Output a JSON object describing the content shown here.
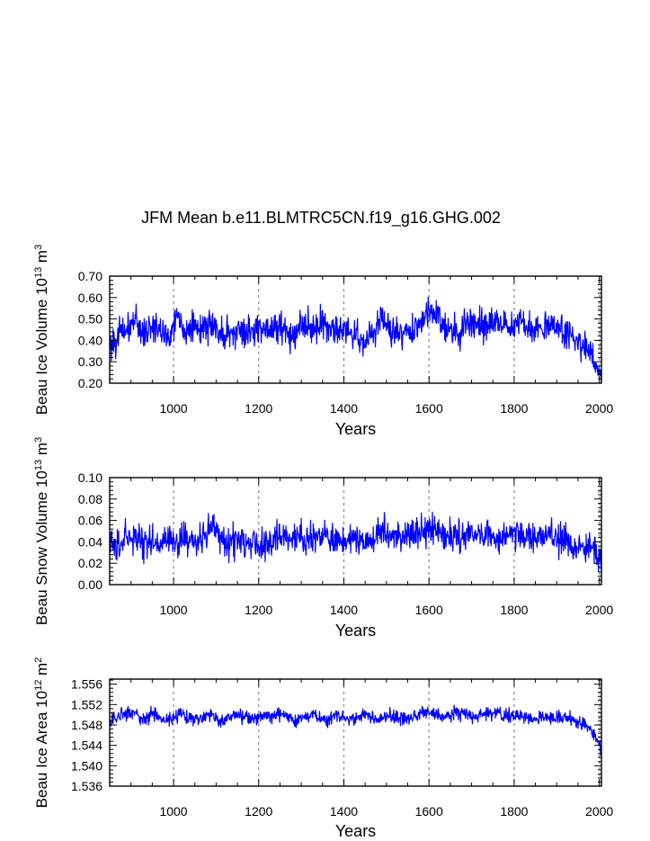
{
  "title": "JFM Mean b.e11.BLMTRC5CN.f19_g16.GHG.002",
  "chart_data": [
    {
      "type": "line",
      "ylabel": "Beau Ice Volume 10^13 m^3",
      "ylabel_parts": {
        "prefix": "Beau Ice Volume 10",
        "exp": "13",
        "unit": " m",
        "unit_exp": "3"
      },
      "xlabel": "Years",
      "xlim": [
        850,
        2005
      ],
      "ylim": [
        0.2,
        0.7
      ],
      "x_ticks": [
        1000,
        1200,
        1400,
        1600,
        1800,
        2000
      ],
      "y_ticks": [
        0.2,
        0.3,
        0.4,
        0.5,
        0.6,
        0.7
      ],
      "y_tick_labels": [
        "0.20",
        "0.30",
        "0.40",
        "0.50",
        "0.60",
        "0.70"
      ],
      "grid_x": [
        1000,
        1200,
        1400,
        1600,
        1800,
        2000
      ],
      "series": [
        {
          "name": "Beau Ice Volume",
          "x": [
            850,
            870,
            890,
            910,
            930,
            950,
            970,
            990,
            1010,
            1030,
            1050,
            1070,
            1090,
            1110,
            1130,
            1150,
            1170,
            1190,
            1210,
            1230,
            1250,
            1270,
            1290,
            1310,
            1330,
            1350,
            1370,
            1390,
            1410,
            1430,
            1450,
            1470,
            1490,
            1510,
            1530,
            1550,
            1570,
            1590,
            1610,
            1630,
            1650,
            1670,
            1690,
            1710,
            1730,
            1750,
            1770,
            1790,
            1810,
            1830,
            1850,
            1870,
            1890,
            1910,
            1930,
            1950,
            1970,
            1990,
            2005
          ],
          "y": [
            0.38,
            0.42,
            0.45,
            0.5,
            0.43,
            0.47,
            0.44,
            0.42,
            0.52,
            0.44,
            0.46,
            0.45,
            0.48,
            0.44,
            0.42,
            0.45,
            0.43,
            0.44,
            0.48,
            0.45,
            0.47,
            0.42,
            0.46,
            0.48,
            0.44,
            0.5,
            0.45,
            0.46,
            0.44,
            0.43,
            0.4,
            0.42,
            0.52,
            0.43,
            0.44,
            0.45,
            0.46,
            0.5,
            0.55,
            0.48,
            0.45,
            0.44,
            0.47,
            0.5,
            0.46,
            0.48,
            0.49,
            0.46,
            0.5,
            0.47,
            0.45,
            0.46,
            0.48,
            0.44,
            0.42,
            0.39,
            0.36,
            0.3,
            0.22
          ]
        }
      ]
    },
    {
      "type": "line",
      "ylabel": "Beau Snow Volume 10^13 m^3",
      "ylabel_parts": {
        "prefix": "Beau Snow Volume 10",
        "exp": "13",
        "unit": " m",
        "unit_exp": "3"
      },
      "xlabel": "Years",
      "xlim": [
        850,
        2005
      ],
      "ylim": [
        0.0,
        0.1
      ],
      "x_ticks": [
        1000,
        1200,
        1400,
        1600,
        1800,
        2000
      ],
      "y_ticks": [
        0.0,
        0.02,
        0.04,
        0.06,
        0.08,
        0.1
      ],
      "y_tick_labels": [
        "0.00",
        "0.02",
        "0.04",
        "0.06",
        "0.08",
        "0.10"
      ],
      "grid_x": [
        1000,
        1200,
        1400,
        1600,
        1800,
        2000
      ],
      "series": [
        {
          "name": "Beau Snow Volume",
          "x": [
            850,
            870,
            890,
            910,
            930,
            950,
            970,
            990,
            1010,
            1030,
            1050,
            1070,
            1090,
            1110,
            1130,
            1150,
            1170,
            1190,
            1210,
            1230,
            1250,
            1270,
            1290,
            1310,
            1330,
            1350,
            1370,
            1390,
            1410,
            1430,
            1450,
            1470,
            1490,
            1510,
            1530,
            1550,
            1570,
            1590,
            1610,
            1630,
            1650,
            1670,
            1690,
            1710,
            1730,
            1750,
            1770,
            1790,
            1810,
            1830,
            1850,
            1870,
            1890,
            1910,
            1930,
            1950,
            1970,
            1990,
            2005
          ],
          "y": [
            0.035,
            0.04,
            0.045,
            0.042,
            0.038,
            0.04,
            0.037,
            0.042,
            0.04,
            0.045,
            0.038,
            0.044,
            0.06,
            0.04,
            0.038,
            0.042,
            0.04,
            0.043,
            0.038,
            0.04,
            0.045,
            0.04,
            0.05,
            0.042,
            0.045,
            0.048,
            0.04,
            0.042,
            0.04,
            0.045,
            0.04,
            0.043,
            0.048,
            0.044,
            0.045,
            0.046,
            0.048,
            0.05,
            0.055,
            0.046,
            0.044,
            0.045,
            0.048,
            0.046,
            0.044,
            0.045,
            0.042,
            0.046,
            0.048,
            0.045,
            0.044,
            0.045,
            0.047,
            0.04,
            0.038,
            0.036,
            0.035,
            0.032,
            0.02
          ]
        }
      ]
    },
    {
      "type": "line",
      "ylabel": "Beau Ice Area 10^12 m^2",
      "ylabel_parts": {
        "prefix": "Beau Ice Area 10",
        "exp": "12",
        "unit": " m",
        "unit_exp": "2"
      },
      "xlabel": "Years",
      "xlim": [
        850,
        2005
      ],
      "ylim": [
        1.536,
        1.557
      ],
      "x_ticks": [
        1000,
        1200,
        1400,
        1600,
        1800,
        2000
      ],
      "y_ticks": [
        1.536,
        1.54,
        1.544,
        1.548,
        1.552,
        1.556
      ],
      "y_tick_labels": [
        "1.536",
        "1.540",
        "1.544",
        "1.548",
        "1.552",
        "1.556"
      ],
      "grid_x": [
        1000,
        1200,
        1400,
        1600,
        1800,
        2000
      ],
      "series": [
        {
          "name": "Beau Ice Area",
          "x": [
            850,
            870,
            890,
            910,
            930,
            950,
            970,
            990,
            1010,
            1030,
            1050,
            1070,
            1090,
            1110,
            1130,
            1150,
            1170,
            1190,
            1210,
            1230,
            1250,
            1270,
            1290,
            1310,
            1330,
            1350,
            1370,
            1390,
            1410,
            1430,
            1450,
            1470,
            1490,
            1510,
            1530,
            1550,
            1570,
            1590,
            1610,
            1630,
            1650,
            1670,
            1690,
            1710,
            1730,
            1750,
            1770,
            1790,
            1810,
            1830,
            1850,
            1870,
            1890,
            1910,
            1930,
            1950,
            1970,
            1990,
            2005
          ],
          "y": [
            1.5485,
            1.5495,
            1.55,
            1.5505,
            1.549,
            1.55,
            1.5495,
            1.549,
            1.55,
            1.5495,
            1.549,
            1.5495,
            1.55,
            1.5485,
            1.5495,
            1.55,
            1.5495,
            1.549,
            1.55,
            1.5495,
            1.55,
            1.5495,
            1.549,
            1.5495,
            1.55,
            1.549,
            1.5495,
            1.55,
            1.549,
            1.5495,
            1.55,
            1.549,
            1.5495,
            1.55,
            1.5495,
            1.549,
            1.55,
            1.5505,
            1.55,
            1.5495,
            1.55,
            1.5505,
            1.55,
            1.5495,
            1.55,
            1.5505,
            1.55,
            1.5495,
            1.55,
            1.5495,
            1.549,
            1.5495,
            1.55,
            1.5495,
            1.549,
            1.5485,
            1.5475,
            1.546,
            1.543
          ]
        }
      ]
    }
  ]
}
